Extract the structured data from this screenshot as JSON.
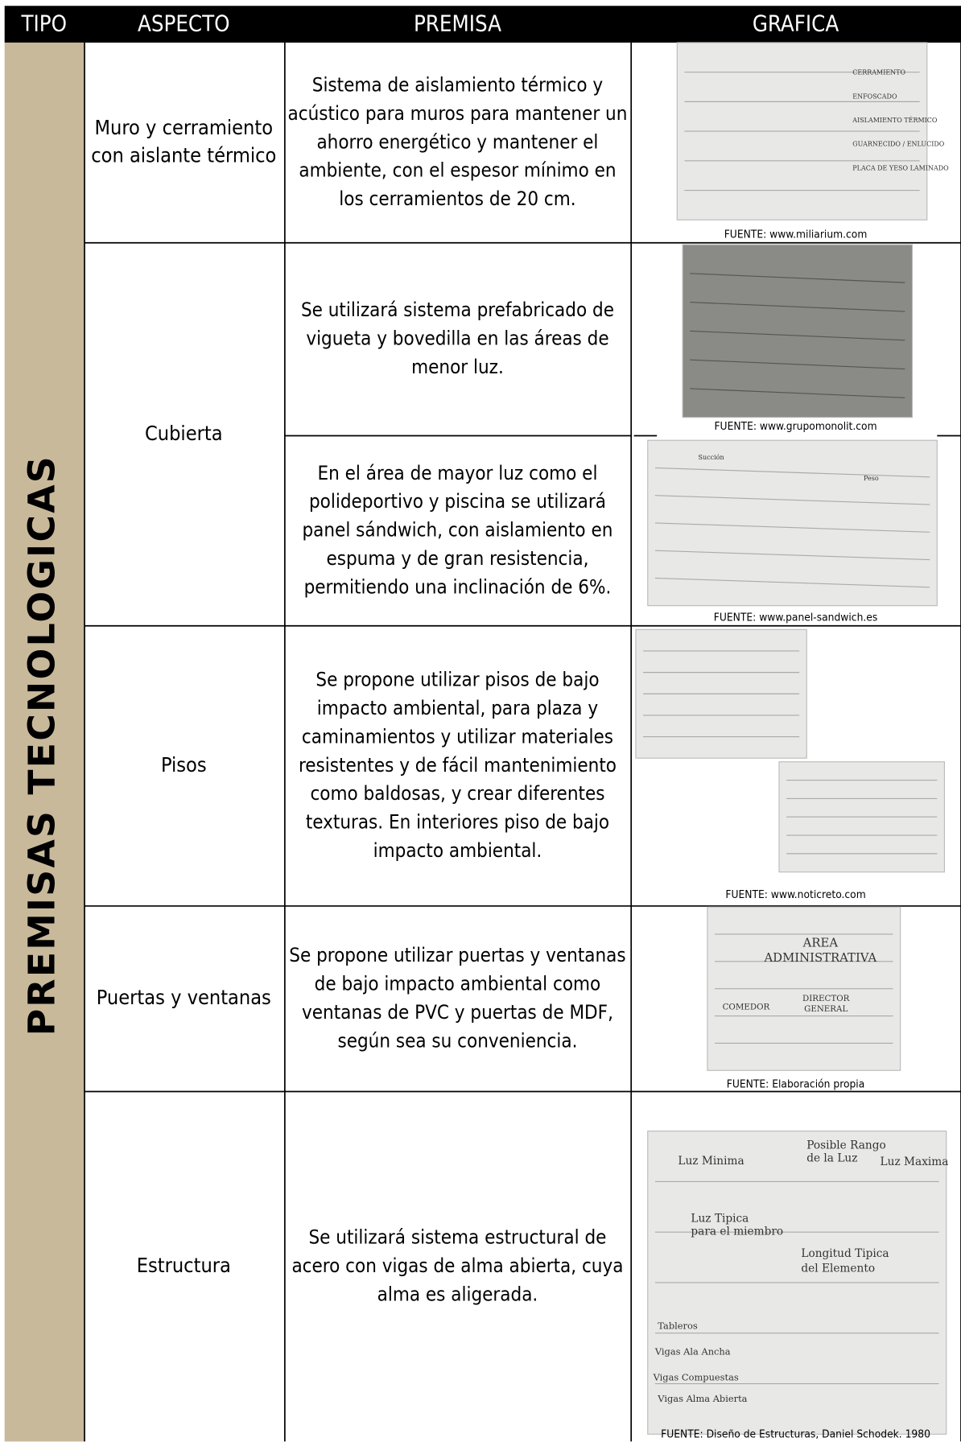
{
  "header": {
    "columns": [
      "TIPO",
      "ASPECTO",
      "PREMISA",
      "GRAFICA"
    ]
  },
  "tipo": "PREMISAS TECNOLOGICAS",
  "table": {
    "rows": [
      {
        "aspecto": [
          "Muro y cerramiento",
          "con aislante térmico"
        ],
        "premisas": [
          [
            "Sistema de aislamiento térmico y",
            "acústico para muros para mantener un",
            "ahorro energético y mantener el",
            "ambiente, con el espesor mínimo en",
            "los cerramientos de 20 cm."
          ]
        ],
        "fuentes": [
          "FUENTE: www.miliarium.com"
        ],
        "figure_labels": [
          "CERRAMIENTO",
          "ENFOSCADO",
          "AISLAMIENTO TÉRMICO",
          "GUARNECIDO / ENLUCIDO",
          "PLACA DE YESO LAMINADO"
        ]
      },
      {
        "aspecto": [
          "Cubierta"
        ],
        "premisas": [
          [
            "Se utilizará sistema prefabricado de",
            "vigueta y bovedilla en las áreas de",
            "menor luz."
          ],
          [
            "En el área de mayor luz como el",
            "polideportivo y piscina se utilizará",
            "panel sándwich, con aislamiento en",
            "espuma y de gran resistencia,",
            "permitiendo una inclinación de 6%."
          ]
        ],
        "fuentes": [
          "FUENTE: www.grupomonolit.com",
          "FUENTE: www.panel-sandwich.es"
        ],
        "figure_labels": [
          "Succión",
          "Peso"
        ]
      },
      {
        "aspecto": [
          "Pisos"
        ],
        "premisas": [
          [
            "Se propone utilizar pisos de bajo",
            "impacto ambiental, para plaza y",
            "caminamientos y utilizar materiales",
            "resistentes y de fácil mantenimiento",
            "como baldosas, y crear diferentes",
            "texturas.  En interiores piso de bajo",
            "impacto ambiental."
          ]
        ],
        "fuentes": [
          "FUENTE: www.noticreto.com"
        ],
        "figure_labels": []
      },
      {
        "aspecto": [
          "Puertas y ventanas"
        ],
        "premisas": [
          [
            "Se propone utilizar puertas y ventanas",
            "de bajo impacto ambiental como",
            "ventanas de PVC y puertas de MDF,",
            "según sea su conveniencia."
          ]
        ],
        "fuentes": [
          "FUENTE: Elaboración propia"
        ],
        "figure_labels": [
          "AREA",
          "ADMINISTRATIVA",
          "COMEDOR",
          "DIRECTOR",
          "GENERAL"
        ]
      },
      {
        "aspecto": [
          "Estructura"
        ],
        "premisas": [
          [
            "Se utilizará sistema estructural de",
            "acero con vigas de alma abierta, cuya",
            "alma es aligerada."
          ]
        ],
        "fuentes": [
          "FUENTE: Diseño de Estructuras, Daniel Schodek. 1980"
        ],
        "figure_labels": [
          "Luz Minima",
          "Posible Rango",
          "de la Luz",
          "Luz Maxima",
          "Luz Tipica",
          "para el miembro",
          "Longitud Tipica",
          "del Elemento",
          "Tableros",
          "Vigas Ala Ancha",
          "Vigas Compuestas",
          "Vigas Alma Abierta"
        ]
      }
    ]
  }
}
